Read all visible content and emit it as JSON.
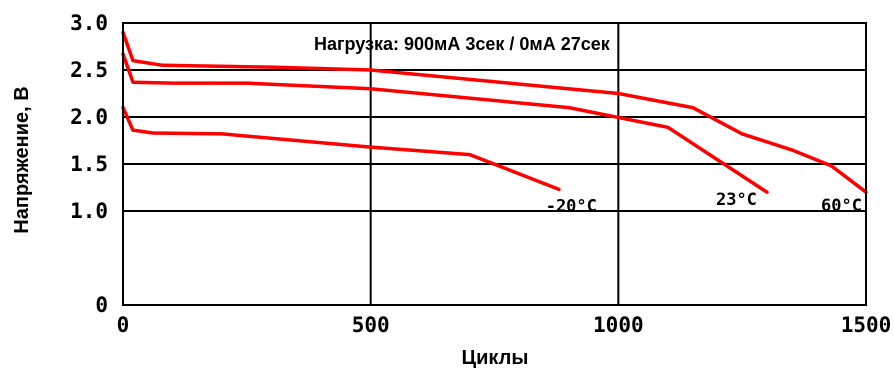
{
  "chart_data": {
    "type": "line",
    "annotation": "Нагрузка: 900мА 3сек / 0мА 27сек",
    "xlabel": "Циклы",
    "ylabel": "Напряжение, В",
    "xlim": [
      0,
      1500
    ],
    "ylim": [
      0,
      3.0
    ],
    "x_ticks": [
      0,
      500,
      1000,
      1500
    ],
    "y_ticks": [
      0,
      1.0,
      1.5,
      2.0,
      2.5,
      3.0
    ],
    "x_tick_labels": [
      "0",
      "500",
      "1000",
      "1500"
    ],
    "y_tick_labels": [
      "0",
      "1.0",
      "1.5",
      "2.0",
      "2.5",
      "3.0"
    ],
    "grid": true,
    "series_color": "#ff0000",
    "series": [
      {
        "name": "-20°C",
        "x": [
          0,
          20,
          60,
          200,
          500,
          700,
          880
        ],
        "y": [
          2.1,
          1.86,
          1.83,
          1.82,
          1.68,
          1.6,
          1.23
        ]
      },
      {
        "name": "23°C",
        "x": [
          0,
          20,
          100,
          250,
          500,
          900,
          1100,
          1300
        ],
        "y": [
          2.67,
          2.37,
          2.36,
          2.36,
          2.3,
          2.1,
          1.89,
          1.2
        ]
      },
      {
        "name": "60°C",
        "x": [
          0,
          20,
          80,
          300,
          500,
          800,
          1000,
          1150,
          1250,
          1350,
          1430,
          1500
        ],
        "y": [
          2.9,
          2.6,
          2.55,
          2.53,
          2.5,
          2.35,
          2.25,
          2.1,
          1.82,
          1.65,
          1.48,
          1.2
        ]
      }
    ]
  }
}
